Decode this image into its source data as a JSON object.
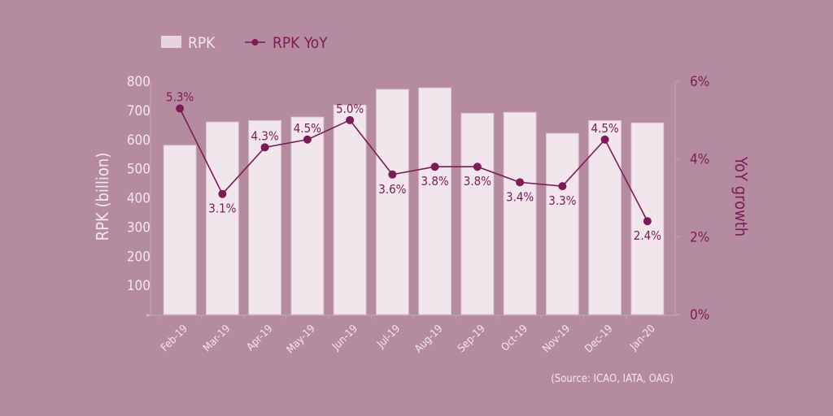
{
  "chart_data": {
    "type": "bar+line",
    "title": "",
    "categories": [
      "Feb-19",
      "Mar-19",
      "Apr-19",
      "May-19",
      "Jun-19",
      "Jul-19",
      "Aug-19",
      "Sep-19",
      "Oct-19",
      "Nov-19",
      "Dec-19",
      "Jan-20"
    ],
    "series": [
      {
        "name": "RPK",
        "type": "bar",
        "axis": "left",
        "values": [
          580,
          660,
          665,
          677,
          718,
          772,
          777,
          690,
          693,
          621,
          665,
          657
        ]
      },
      {
        "name": "RPK YoY",
        "type": "line",
        "axis": "right",
        "values": [
          5.3,
          3.1,
          4.3,
          4.5,
          5.0,
          3.6,
          3.8,
          3.8,
          3.4,
          3.3,
          4.5,
          2.4
        ],
        "labels": [
          "5.3%",
          "3.1%",
          "4.3%",
          "4.5%",
          "5.0%",
          "3.6%",
          "3.8%",
          "3.8%",
          "3.4%",
          "3.3%",
          "4.5%",
          "2.4%"
        ],
        "label_pos": [
          "above",
          "below",
          "above",
          "above",
          "above",
          "below",
          "below",
          "below",
          "below",
          "below",
          "above",
          "below"
        ]
      }
    ],
    "ylabel": "RPK (billion)",
    "ylim": [
      0,
      800
    ],
    "yticks": [
      "-",
      "100",
      "200",
      "300",
      "400",
      "500",
      "600",
      "700",
      "800"
    ],
    "y2label": "YoY growth",
    "y2lim": [
      0,
      6
    ],
    "y2ticks": [
      "0%",
      "2%",
      "4%",
      "6%"
    ],
    "legend": {
      "position": "top-left",
      "entries": [
        "RPK",
        "RPK YoY"
      ]
    },
    "source": "(Source: ICAO, IATA, OAG)",
    "colors": {
      "background": "#b58c9f",
      "bar": "#f3e7ec",
      "line": "#7e1a57",
      "text_light": "#f3e7ec"
    }
  }
}
